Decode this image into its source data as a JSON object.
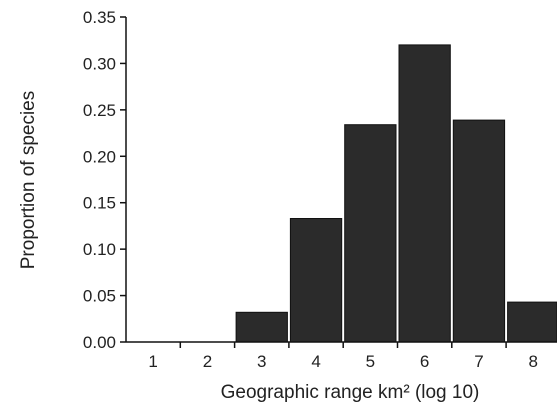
{
  "chart_data": {
    "type": "bar",
    "title": "",
    "xlabel": "Geographic range km² (log 10)",
    "ylabel": "Proportion of species",
    "categories": [
      "1",
      "2",
      "3",
      "4",
      "5",
      "6",
      "7",
      "8"
    ],
    "values": [
      0.0,
      0.0,
      0.032,
      0.133,
      0.234,
      0.32,
      0.239,
      0.043
    ],
    "ylim": [
      0,
      0.35
    ],
    "yticks": [
      "0.00",
      "0.05",
      "0.10",
      "0.15",
      "0.20",
      "0.25",
      "0.30",
      "0.35"
    ],
    "grid": false,
    "legend": "none",
    "bar_color": "#2b2b2b"
  }
}
